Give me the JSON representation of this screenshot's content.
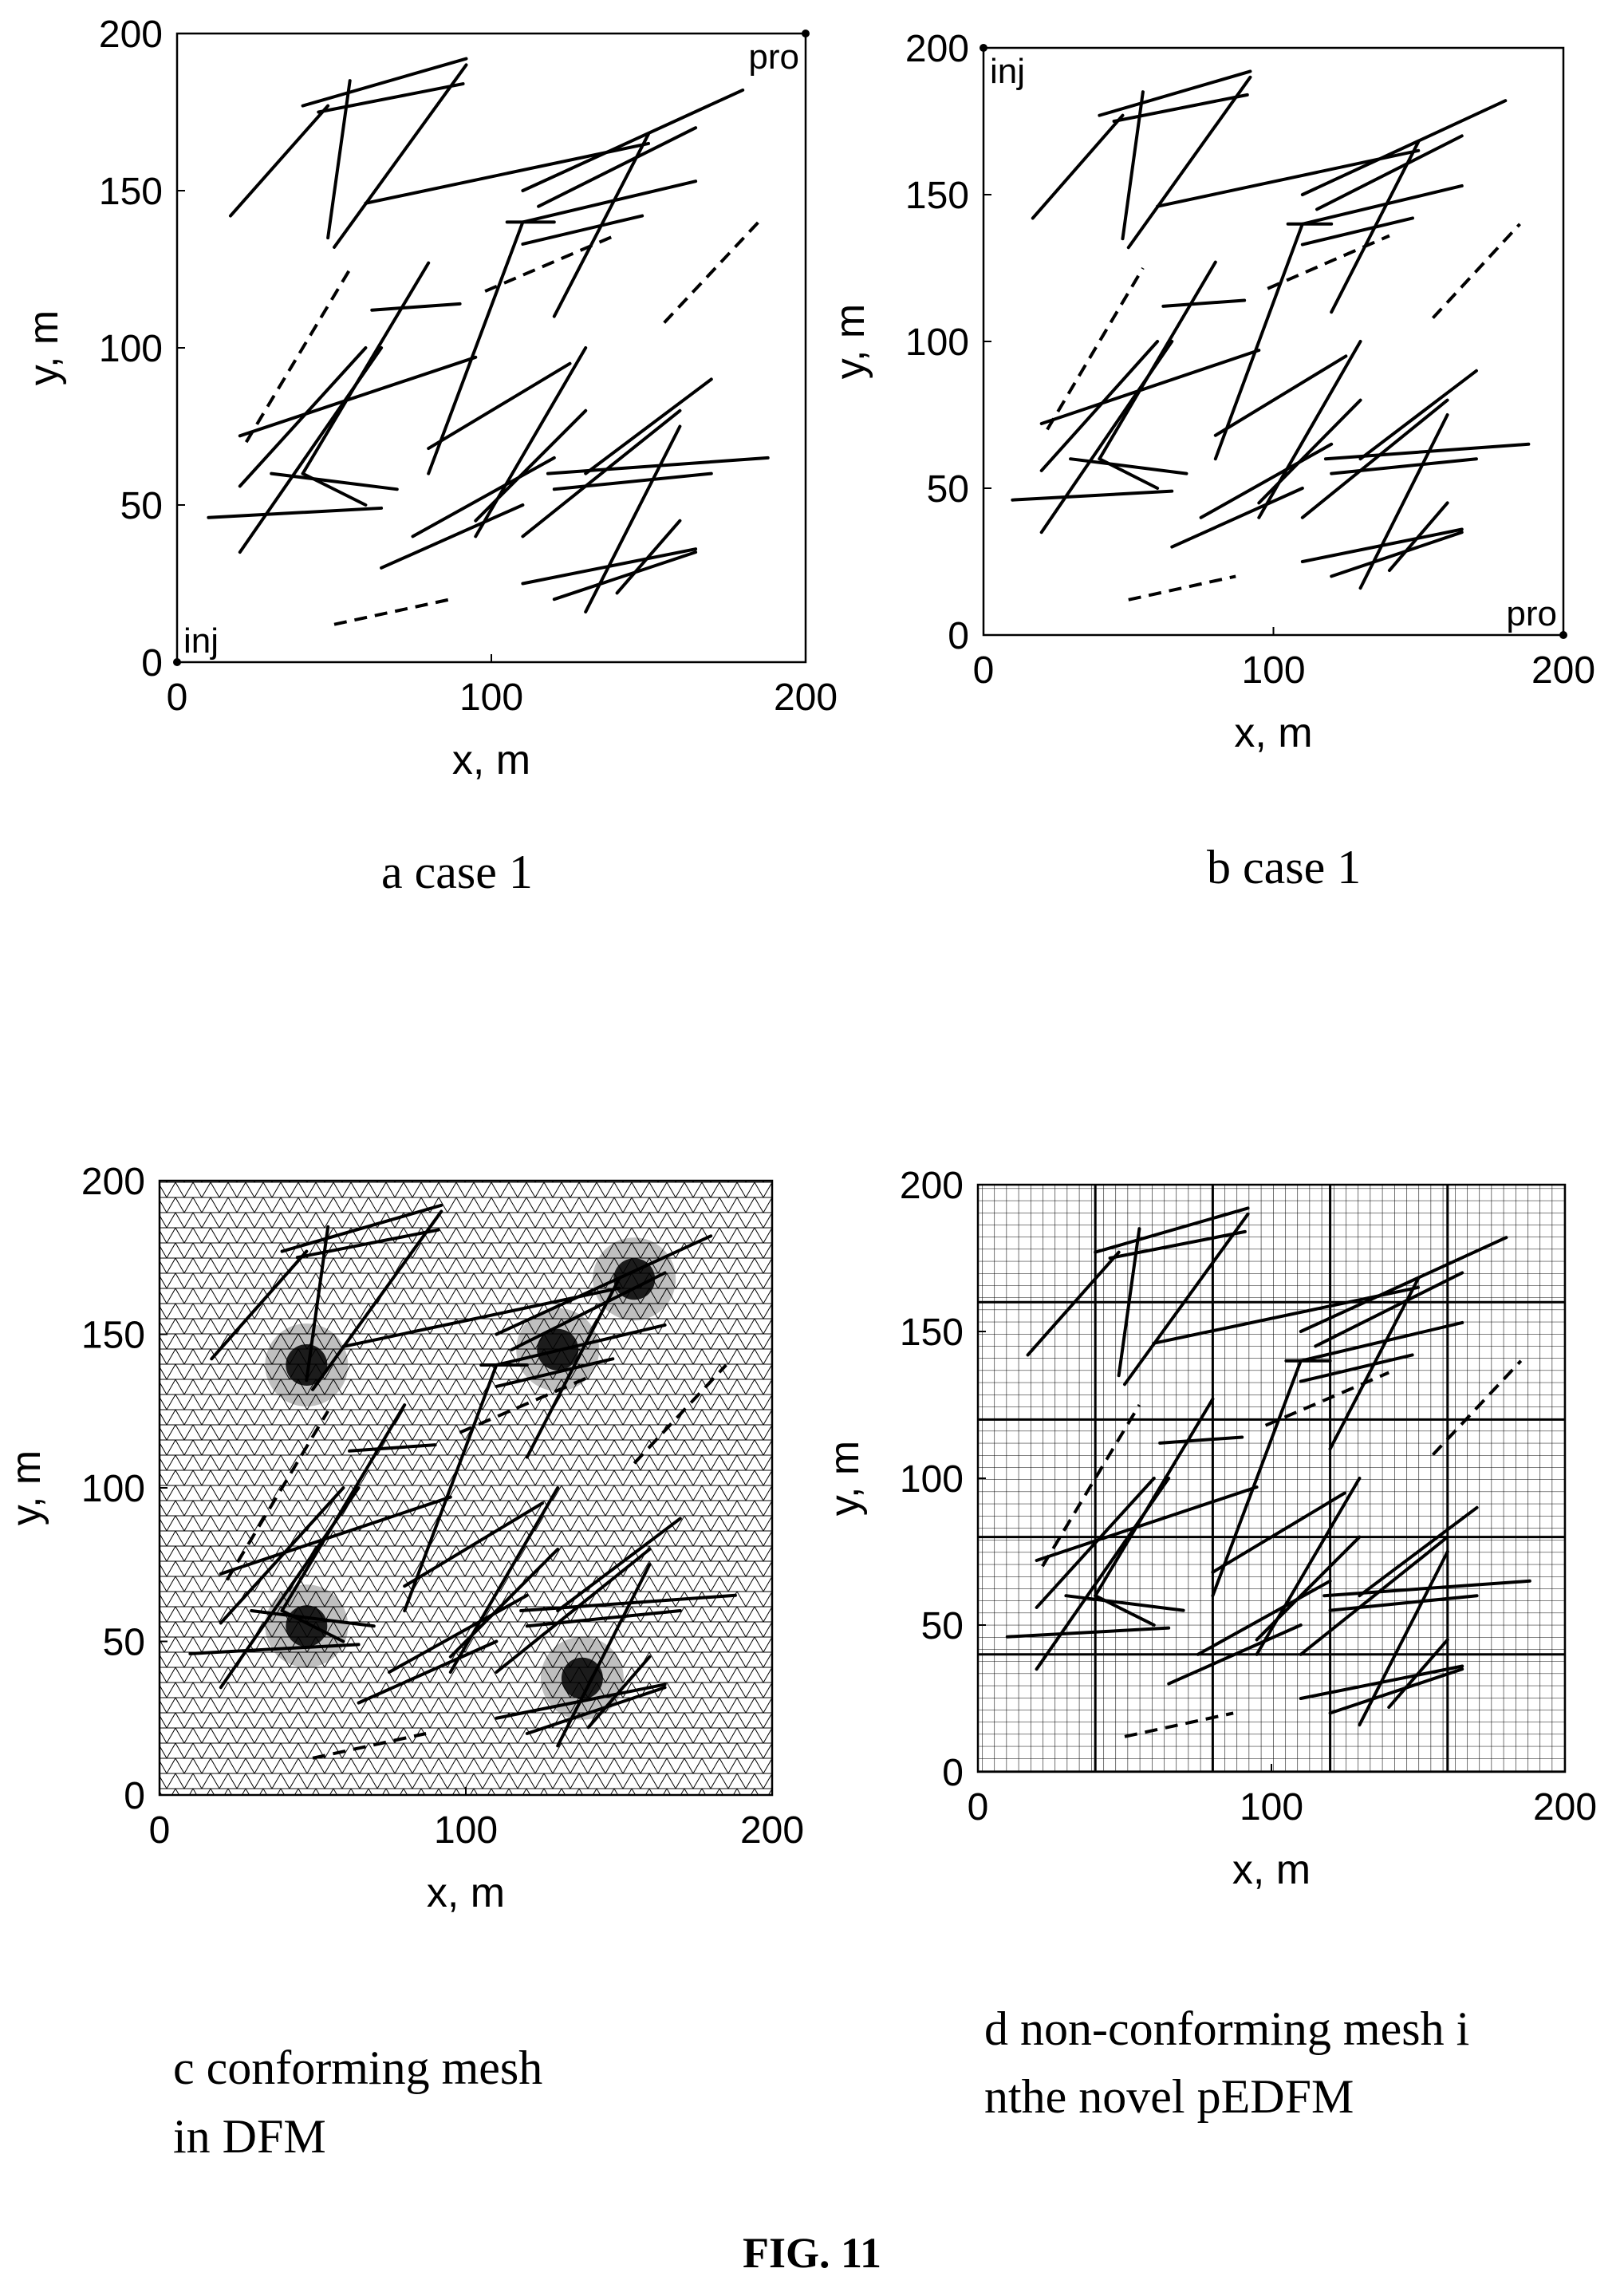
{
  "figure_label": "FIG. 11",
  "panels": [
    {
      "id": "a",
      "caption": [
        "a case 1"
      ],
      "xlabel": "x, m",
      "ylabel": "y, m",
      "xticks": [
        "0",
        "100",
        "200"
      ],
      "yticks": [
        "0",
        "50",
        "100",
        "150",
        "200"
      ],
      "wells": [
        {
          "label": "inj",
          "x": 0,
          "y": 0
        },
        {
          "label": "pro",
          "x": 200,
          "y": 200
        }
      ]
    },
    {
      "id": "b",
      "caption": [
        "b case 1"
      ],
      "xlabel": "x, m",
      "ylabel": "y, m",
      "xticks": [
        "0",
        "100",
        "200"
      ],
      "yticks": [
        "0",
        "50",
        "100",
        "150",
        "200"
      ],
      "wells": [
        {
          "label": "inj",
          "x": 0,
          "y": 200
        },
        {
          "label": "pro",
          "x": 200,
          "y": 0
        }
      ]
    },
    {
      "id": "c",
      "caption": [
        "c conforming mesh",
        "in DFM"
      ],
      "xlabel": "x, m",
      "ylabel": "y, m",
      "xticks": [
        "0",
        "100",
        "200"
      ],
      "yticks": [
        "0",
        "50",
        "100",
        "150",
        "200"
      ],
      "mesh": "triangular"
    },
    {
      "id": "d",
      "caption": [
        "d non-conforming mesh i",
        "nthe novel pEDFM"
      ],
      "xlabel": "x, m",
      "ylabel": "y, m",
      "xticks": [
        "0",
        "100",
        "200"
      ],
      "yticks": [
        "0",
        "50",
        "100",
        "150",
        "200"
      ],
      "mesh": "cartesian"
    }
  ],
  "chart_data": {
    "type": "line",
    "xlim": [
      0,
      200
    ],
    "ylim": [
      0,
      200
    ],
    "xlabel": "x, m",
    "ylabel": "y, m",
    "fractures": [
      [
        17,
        142,
        48,
        177
      ],
      [
        40,
        177,
        92,
        192
      ],
      [
        45,
        175,
        91,
        184
      ],
      [
        55,
        185,
        48,
        135
      ],
      [
        50,
        132,
        92,
        190
      ],
      [
        60,
        146,
        150,
        165
      ],
      [
        110,
        150,
        180,
        182
      ],
      [
        110,
        140,
        165,
        153
      ],
      [
        115,
        145,
        165,
        170
      ],
      [
        120,
        110,
        150,
        168
      ],
      [
        110,
        133,
        148,
        142
      ],
      [
        105,
        140,
        120,
        140
      ],
      [
        80,
        60,
        110,
        140
      ],
      [
        62,
        112,
        90,
        114
      ],
      [
        20,
        72,
        95,
        97
      ],
      [
        20,
        56,
        60,
        100
      ],
      [
        40,
        60,
        80,
        127
      ],
      [
        30,
        60,
        70,
        55
      ],
      [
        10,
        46,
        65,
        49
      ],
      [
        20,
        35,
        65,
        100
      ],
      [
        80,
        68,
        125,
        95
      ],
      [
        95,
        40,
        130,
        100
      ],
      [
        65,
        30,
        110,
        50
      ],
      [
        110,
        40,
        160,
        80
      ],
      [
        118,
        60,
        188,
        65
      ],
      [
        130,
        60,
        170,
        90
      ],
      [
        120,
        55,
        170,
        60
      ],
      [
        95,
        45,
        130,
        80
      ],
      [
        120,
        20,
        165,
        35
      ],
      [
        110,
        25,
        165,
        36
      ],
      [
        130,
        16,
        160,
        75
      ],
      [
        140,
        22,
        160,
        45
      ],
      [
        75,
        40,
        120,
        65
      ],
      [
        40,
        60,
        60,
        50
      ]
    ],
    "dashed_fractures": [
      [
        22,
        70,
        55,
        125
      ],
      [
        98,
        118,
        140,
        136
      ],
      [
        155,
        108,
        185,
        140
      ],
      [
        50,
        12,
        87,
        20
      ]
    ]
  }
}
